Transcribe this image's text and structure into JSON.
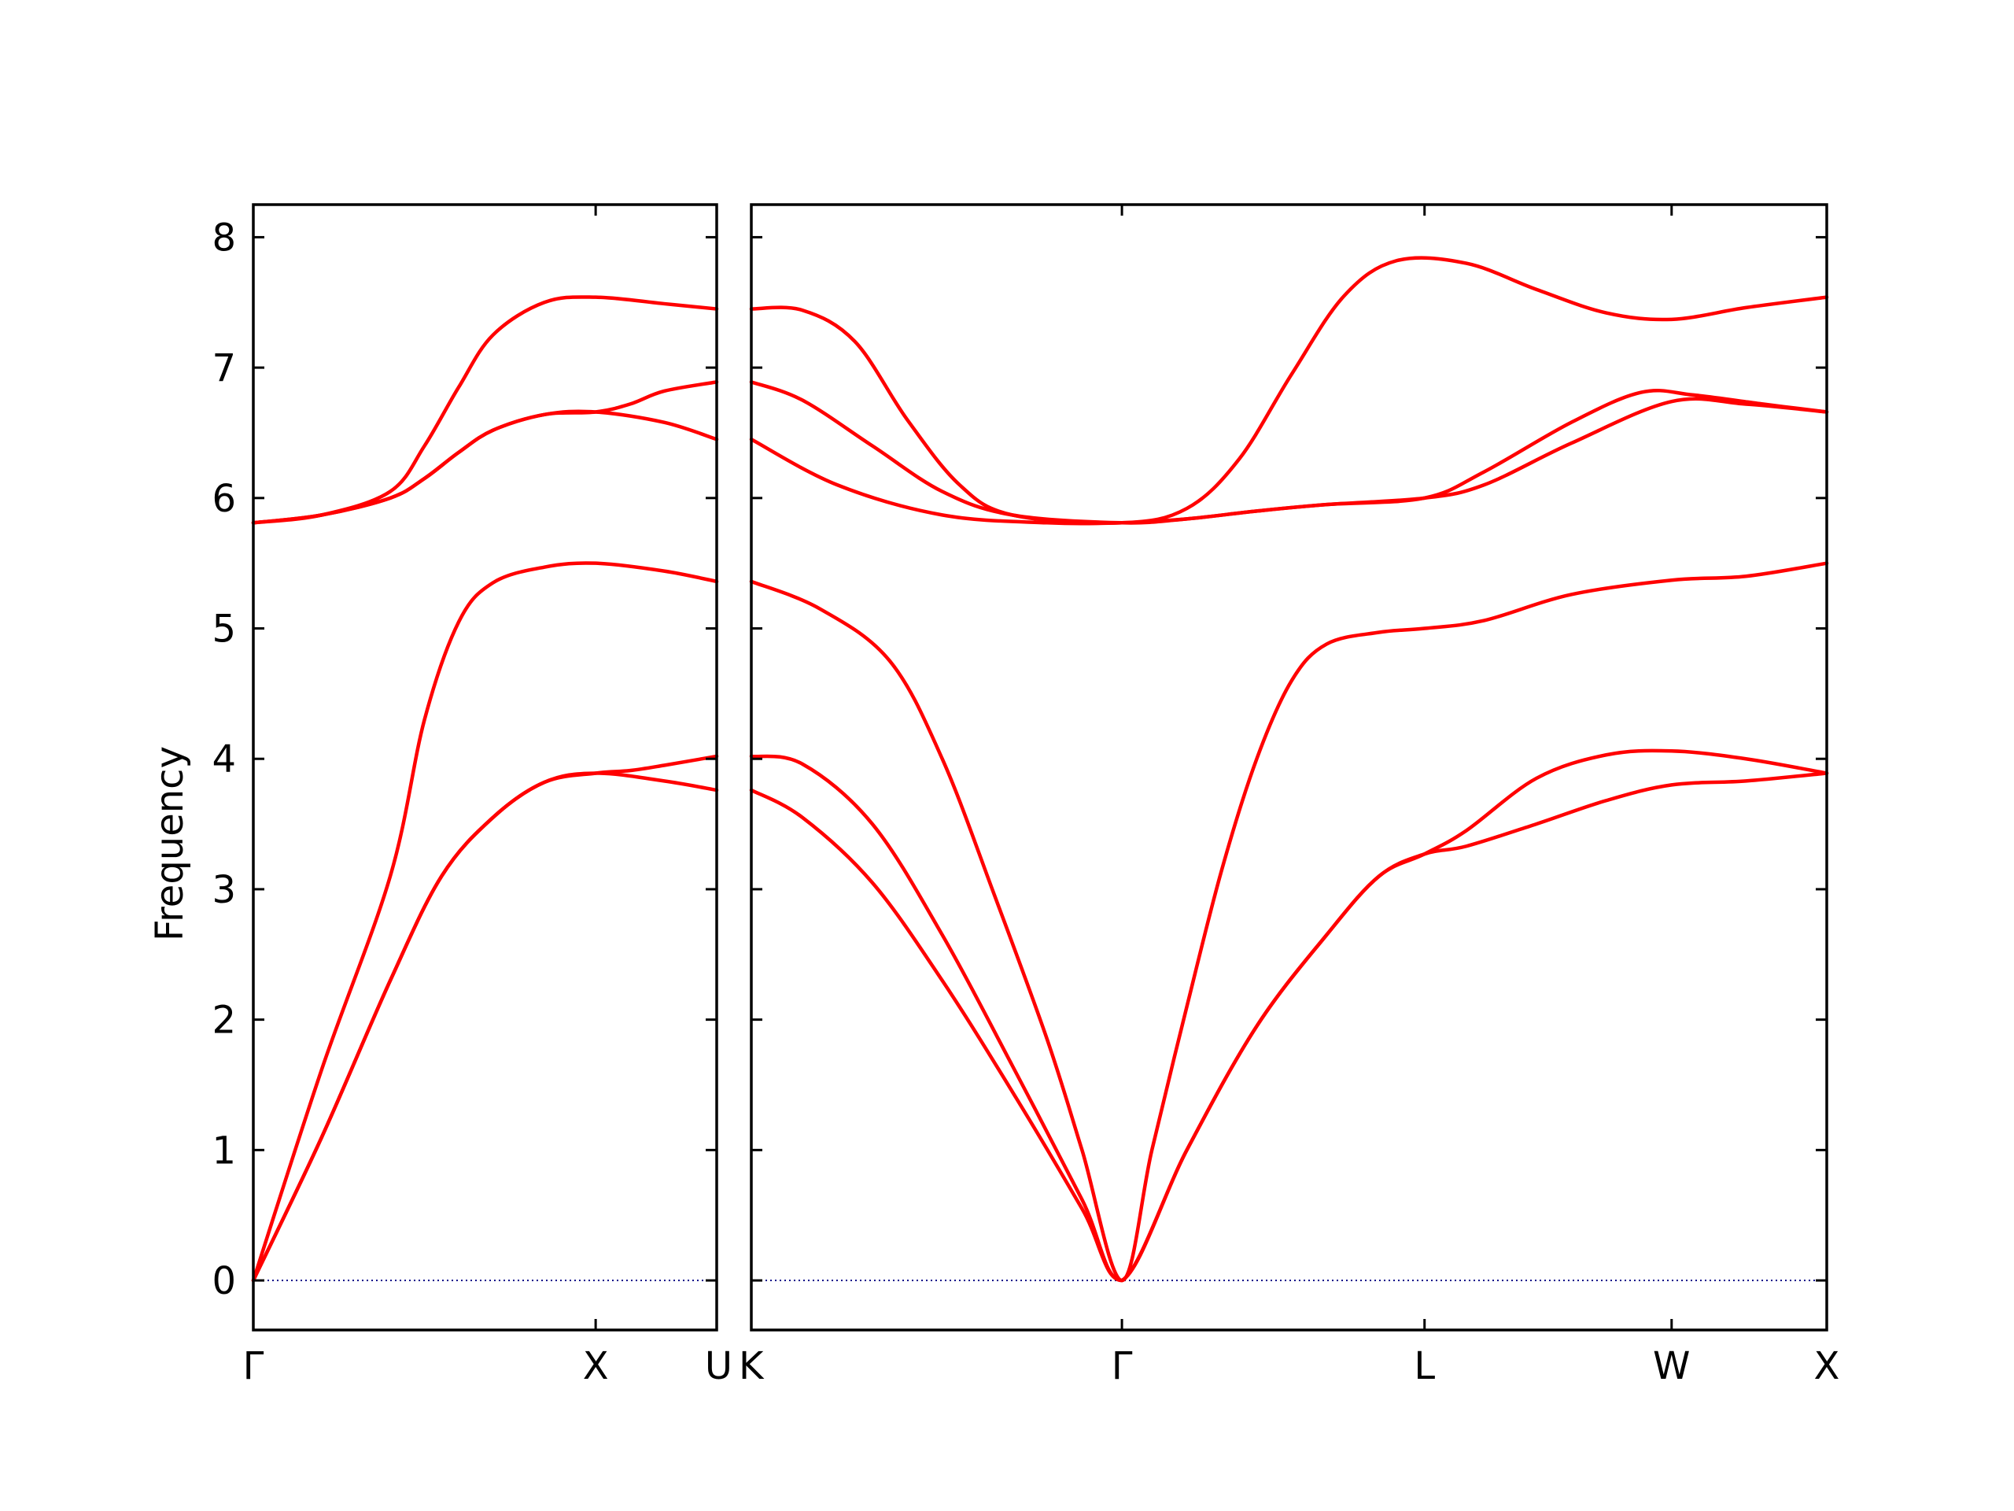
{
  "chart_data": {
    "type": "line",
    "title": "",
    "ylabel": "Frequency",
    "xlabel": "",
    "ylim": [
      -0.38,
      8.25
    ],
    "yticks": [
      0,
      1,
      2,
      3,
      4,
      5,
      6,
      7,
      8
    ],
    "line_color": "#ff0000",
    "zero_line_color": "#00008b",
    "grid": false,
    "legend": "none",
    "panels": [
      {
        "id": "panel-1",
        "xlim": [
          0,
          1.3536
        ],
        "labels": [
          {
            "pos": 0,
            "text": "Γ"
          },
          {
            "pos": 1.0,
            "text": "X"
          },
          {
            "pos": 1.3536,
            "text": "U"
          }
        ],
        "series": [
          {
            "points": [
              [
                0,
                0
              ],
              [
                0.2,
                1.62
              ],
              [
                0.4,
                3.1
              ],
              [
                0.5,
                4.3
              ],
              [
                0.6,
                5.05
              ],
              [
                0.7,
                5.35
              ],
              [
                0.85,
                5.47
              ],
              [
                1.0,
                5.5
              ],
              [
                1.2,
                5.44
              ],
              [
                1.3536,
                5.36
              ]
            ]
          },
          {
            "points": [
              [
                0,
                0
              ],
              [
                0.2,
                1.1
              ],
              [
                0.4,
                2.3
              ],
              [
                0.55,
                3.1
              ],
              [
                0.7,
                3.55
              ],
              [
                0.85,
                3.82
              ],
              [
                1.0,
                3.89
              ],
              [
                1.2,
                3.83
              ],
              [
                1.3536,
                3.76
              ]
            ]
          },
          {
            "points": [
              [
                0,
                0
              ],
              [
                0.2,
                1.1
              ],
              [
                0.4,
                2.3
              ],
              [
                0.55,
                3.1
              ],
              [
                0.7,
                3.55
              ],
              [
                0.85,
                3.82
              ],
              [
                1.0,
                3.89
              ],
              [
                1.1,
                3.91
              ],
              [
                1.2,
                3.95
              ],
              [
                1.3536,
                4.02
              ]
            ]
          },
          {
            "points": [
              [
                0,
                5.81
              ],
              [
                0.2,
                5.87
              ],
              [
                0.4,
                6.0
              ],
              [
                0.5,
                6.15
              ],
              [
                0.6,
                6.35
              ],
              [
                0.7,
                6.52
              ],
              [
                0.85,
                6.64
              ],
              [
                1.0,
                6.66
              ],
              [
                1.2,
                6.58
              ],
              [
                1.3536,
                6.45
              ]
            ]
          },
          {
            "points": [
              [
                0,
                5.81
              ],
              [
                0.2,
                5.87
              ],
              [
                0.4,
                6.0
              ],
              [
                0.5,
                6.15
              ],
              [
                0.6,
                6.35
              ],
              [
                0.7,
                6.52
              ],
              [
                0.85,
                6.64
              ],
              [
                1.0,
                6.66
              ],
              [
                1.1,
                6.72
              ],
              [
                1.2,
                6.82
              ],
              [
                1.3536,
                6.89
              ]
            ]
          },
          {
            "points": [
              [
                0,
                5.81
              ],
              [
                0.2,
                5.87
              ],
              [
                0.4,
                6.05
              ],
              [
                0.5,
                6.4
              ],
              [
                0.6,
                6.85
              ],
              [
                0.7,
                7.25
              ],
              [
                0.85,
                7.5
              ],
              [
                1.0,
                7.54
              ],
              [
                1.2,
                7.49
              ],
              [
                1.3536,
                7.45
              ]
            ]
          }
        ]
      },
      {
        "id": "panel-2",
        "xlim": [
          1.3536,
          4.4313
        ],
        "labels": [
          {
            "pos": 1.3536,
            "text": "K"
          },
          {
            "pos": 2.4142,
            "text": "Γ"
          },
          {
            "pos": 3.2802,
            "text": "L"
          },
          {
            "pos": 3.9873,
            "text": "W"
          },
          {
            "pos": 4.4313,
            "text": "X"
          }
        ],
        "series": [
          {
            "points": [
              [
                1.3536,
                3.76
              ],
              [
                1.5,
                3.55
              ],
              [
                1.7,
                3.05
              ],
              [
                1.9,
                2.3
              ],
              [
                2.1,
                1.45
              ],
              [
                2.3,
                0.55
              ],
              [
                2.4142,
                0
              ],
              [
                2.6,
                1.0
              ],
              [
                2.8,
                1.95
              ],
              [
                3.0,
                2.65
              ],
              [
                3.15,
                3.1
              ],
              [
                3.2802,
                3.27
              ],
              [
                3.4,
                3.33
              ],
              [
                3.6,
                3.5
              ],
              [
                3.8,
                3.68
              ],
              [
                3.9873,
                3.8
              ],
              [
                4.2,
                3.83
              ],
              [
                4.4313,
                3.89
              ]
            ]
          },
          {
            "points": [
              [
                1.3536,
                4.02
              ],
              [
                1.5,
                3.96
              ],
              [
                1.7,
                3.5
              ],
              [
                1.9,
                2.65
              ],
              [
                2.1,
                1.65
              ],
              [
                2.3,
                0.62
              ],
              [
                2.4142,
                0
              ],
              [
                2.6,
                1.0
              ],
              [
                2.8,
                1.95
              ],
              [
                3.0,
                2.65
              ],
              [
                3.15,
                3.1
              ],
              [
                3.2802,
                3.27
              ],
              [
                3.4,
                3.45
              ],
              [
                3.6,
                3.85
              ],
              [
                3.8,
                4.03
              ],
              [
                3.9873,
                4.06
              ],
              [
                4.2,
                4.0
              ],
              [
                4.4313,
                3.89
              ]
            ]
          },
          {
            "points": [
              [
                1.3536,
                5.36
              ],
              [
                1.55,
                5.15
              ],
              [
                1.75,
                4.75
              ],
              [
                1.9,
                4.0
              ],
              [
                2.05,
                2.95
              ],
              [
                2.2,
                1.85
              ],
              [
                2.3,
                1.0
              ],
              [
                2.4142,
                0
              ],
              [
                2.5,
                1.0
              ],
              [
                2.6,
                2.1
              ],
              [
                2.7,
                3.15
              ],
              [
                2.8,
                4.0
              ],
              [
                2.9,
                4.6
              ],
              [
                3.0,
                4.88
              ],
              [
                3.15,
                4.97
              ],
              [
                3.2802,
                5.0
              ],
              [
                3.45,
                5.06
              ],
              [
                3.7,
                5.26
              ],
              [
                3.9873,
                5.37
              ],
              [
                4.2,
                5.4
              ],
              [
                4.4313,
                5.5
              ]
            ]
          },
          {
            "points": [
              [
                1.3536,
                6.45
              ],
              [
                1.6,
                6.1
              ],
              [
                1.9,
                5.87
              ],
              [
                2.2,
                5.81
              ],
              [
                2.4142,
                5.81
              ],
              [
                2.6,
                5.84
              ],
              [
                2.8,
                5.9
              ],
              [
                3.0,
                5.95
              ],
              [
                3.2802,
                6.0
              ],
              [
                3.45,
                6.1
              ],
              [
                3.7,
                6.42
              ],
              [
                3.9873,
                6.74
              ],
              [
                4.2,
                6.72
              ],
              [
                4.4313,
                6.66
              ]
            ]
          },
          {
            "points": [
              [
                1.3536,
                6.89
              ],
              [
                1.5,
                6.75
              ],
              [
                1.7,
                6.4
              ],
              [
                1.9,
                6.05
              ],
              [
                2.1,
                5.87
              ],
              [
                2.4142,
                5.81
              ],
              [
                2.6,
                5.84
              ],
              [
                2.8,
                5.9
              ],
              [
                3.0,
                5.95
              ],
              [
                3.2802,
                6.0
              ],
              [
                3.45,
                6.2
              ],
              [
                3.7,
                6.58
              ],
              [
                3.9,
                6.81
              ],
              [
                4.05,
                6.79
              ],
              [
                4.25,
                6.72
              ],
              [
                4.4313,
                6.66
              ]
            ]
          },
          {
            "points": [
              [
                1.3536,
                7.45
              ],
              [
                1.5,
                7.44
              ],
              [
                1.65,
                7.2
              ],
              [
                1.8,
                6.6
              ],
              [
                1.95,
                6.1
              ],
              [
                2.1,
                5.87
              ],
              [
                2.4142,
                5.81
              ],
              [
                2.6,
                5.92
              ],
              [
                2.75,
                6.3
              ],
              [
                2.9,
                6.95
              ],
              [
                3.05,
                7.55
              ],
              [
                3.2,
                7.82
              ],
              [
                3.4,
                7.8
              ],
              [
                3.6,
                7.6
              ],
              [
                3.8,
                7.42
              ],
              [
                3.9873,
                7.37
              ],
              [
                4.2,
                7.46
              ],
              [
                4.4313,
                7.54
              ]
            ]
          }
        ]
      }
    ]
  }
}
